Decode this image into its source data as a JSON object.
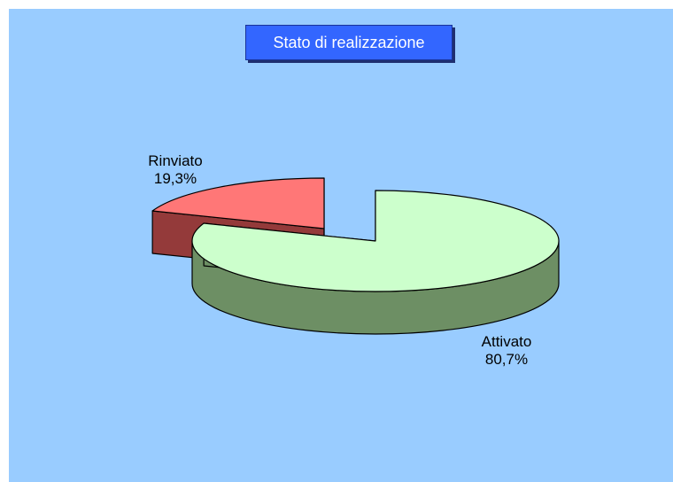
{
  "chart_data": {
    "type": "pie",
    "title": "Stato di realizzazione",
    "style": "3d-exploded",
    "slices": [
      {
        "label": "Attivato",
        "value": 80.7,
        "value_label": "80,7%",
        "top_color": "#ccffcc",
        "side_color": "#6d8f64"
      },
      {
        "label": "Rinviato",
        "value": 19.3,
        "value_label": "19,3%",
        "top_color": "#ff7777",
        "side_color": "#943a3a"
      }
    ],
    "background": "#99ccff",
    "title_bg": "#3366ff"
  }
}
